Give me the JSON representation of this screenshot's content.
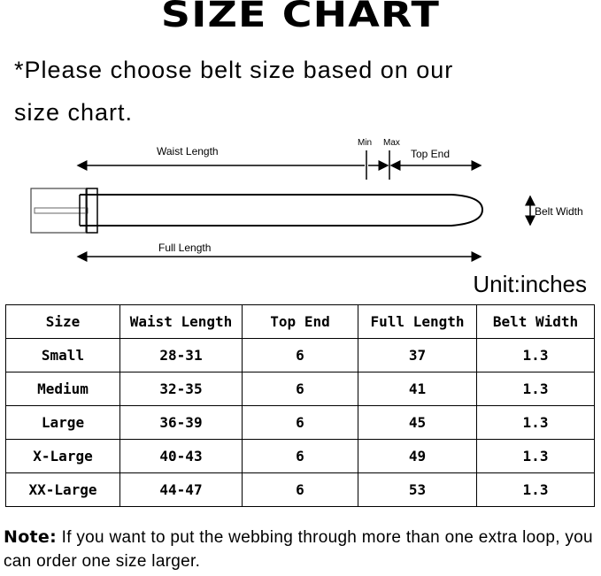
{
  "title": "SIZE CHART",
  "instruction_line1": "*Please choose belt size based on our",
  "instruction_line2": "size chart.",
  "diagram": {
    "waist_length": "Waist Length",
    "min": "Min",
    "max": "Max",
    "top_end": "Top End",
    "belt_width": "Belt Width",
    "full_length": "Full Length"
  },
  "unit": "Unit:inches",
  "table": {
    "headers": [
      "Size",
      "Waist Length",
      "Top End",
      "Full Length",
      "Belt Width"
    ],
    "rows": [
      [
        "Small",
        "28-31",
        "6",
        "37",
        "1.3"
      ],
      [
        "Medium",
        "32-35",
        "6",
        "41",
        "1.3"
      ],
      [
        "Large",
        "36-39",
        "6",
        "45",
        "1.3"
      ],
      [
        "X-Large",
        "40-43",
        "6",
        "49",
        "1.3"
      ],
      [
        "XX-Large",
        "44-47",
        "6",
        "53",
        "1.3"
      ]
    ]
  },
  "note": {
    "label": "Note:",
    "text": " If you want to put the webbing through more than one extra loop,  you can order one size larger."
  }
}
